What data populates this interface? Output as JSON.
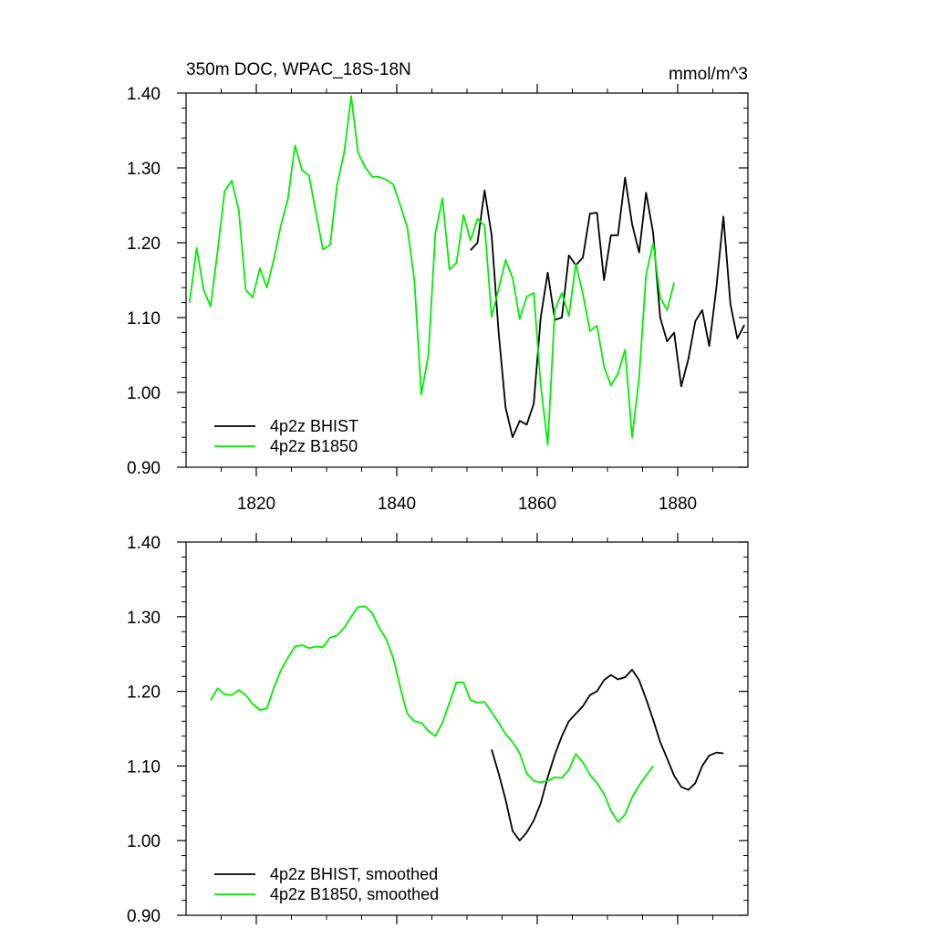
{
  "title": "350m DOC, WPAC_18S-18N",
  "units": "mmol/m^3",
  "colors": {
    "bhist": "#000000",
    "b1850": "#00ee00",
    "frame": "#000000"
  },
  "chart_data": [
    {
      "type": "line",
      "xlim": [
        1810,
        1890
      ],
      "ylim": [
        0.9,
        1.4
      ],
      "xticks": [
        1820,
        1840,
        1860,
        1880
      ],
      "xtick_labels": [
        "1820",
        "1840",
        "1860",
        "1880"
      ],
      "yticks": [
        0.9,
        1.0,
        1.1,
        1.2,
        1.3,
        1.4
      ],
      "ytick_labels": [
        "0.90",
        "1.00",
        "1.10",
        "1.20",
        "1.30",
        "1.40"
      ],
      "legend_position": "bottom-left",
      "series": [
        {
          "name": "4p2z BHIST",
          "color": "#000000",
          "x": [
            1850.5,
            1851.5,
            1852.5,
            1853.5,
            1854.5,
            1855.5,
            1856.5,
            1857.5,
            1858.5,
            1859.5,
            1860.5,
            1861.5,
            1862.5,
            1863.5,
            1864.5,
            1865.5,
            1866.5,
            1867.5,
            1868.5,
            1869.5,
            1870.5,
            1871.5,
            1872.5,
            1873.5,
            1874.5,
            1875.5,
            1876.5,
            1877.5,
            1878.5,
            1879.5,
            1880.5,
            1881.5,
            1882.5,
            1883.5,
            1884.5,
            1885.5,
            1886.5,
            1887.5,
            1888.5,
            1889.5
          ],
          "y": [
            1.19,
            1.2,
            1.27,
            1.21,
            1.08,
            0.98,
            0.94,
            0.962,
            0.957,
            0.985,
            1.1,
            1.16,
            1.097,
            1.1,
            1.183,
            1.17,
            1.18,
            1.239,
            1.24,
            1.15,
            1.21,
            1.21,
            1.287,
            1.225,
            1.187,
            1.267,
            1.213,
            1.1,
            1.068,
            1.08,
            1.008,
            1.044,
            1.095,
            1.11,
            1.062,
            1.14,
            1.235,
            1.118,
            1.072,
            1.09
          ]
        },
        {
          "name": "4p2z B1850",
          "color": "#00ee00",
          "x": [
            1810.5,
            1811.5,
            1812.5,
            1813.5,
            1814.5,
            1815.5,
            1816.5,
            1817.5,
            1818.5,
            1819.5,
            1820.5,
            1821.5,
            1822.5,
            1823.5,
            1824.5,
            1825.5,
            1826.5,
            1827.5,
            1828.5,
            1829.5,
            1830.5,
            1831.5,
            1832.5,
            1833.5,
            1834.5,
            1835.5,
            1836.5,
            1837.5,
            1838.5,
            1839.5,
            1840.5,
            1841.5,
            1842.5,
            1843.5,
            1844.5,
            1845.5,
            1846.5,
            1847.5,
            1848.5,
            1849.5,
            1850.5,
            1851.5,
            1852.5,
            1853.5,
            1854.5,
            1855.5,
            1856.5,
            1857.5,
            1858.5,
            1859.5,
            1860.5,
            1861.5,
            1862.5,
            1863.5,
            1864.5,
            1865.5,
            1866.5,
            1867.5,
            1868.5,
            1869.5,
            1870.5,
            1871.5,
            1872.5,
            1873.5,
            1874.5,
            1875.5,
            1876.5,
            1877.5,
            1878.5,
            1879.5
          ],
          "y": [
            1.12,
            1.193,
            1.137,
            1.115,
            1.19,
            1.269,
            1.283,
            1.243,
            1.137,
            1.127,
            1.166,
            1.14,
            1.178,
            1.223,
            1.258,
            1.33,
            1.297,
            1.29,
            1.239,
            1.191,
            1.197,
            1.277,
            1.32,
            1.396,
            1.32,
            1.301,
            1.288,
            1.288,
            1.284,
            1.278,
            1.25,
            1.221,
            1.15,
            0.997,
            1.05,
            1.213,
            1.259,
            1.164,
            1.173,
            1.237,
            1.203,
            1.232,
            1.223,
            1.101,
            1.138,
            1.177,
            1.153,
            1.098,
            1.128,
            1.133,
            1.01,
            0.93,
            1.11,
            1.133,
            1.102,
            1.172,
            1.132,
            1.082,
            1.089,
            1.035,
            1.009,
            1.025,
            1.057,
            0.94,
            1.02,
            1.157,
            1.2,
            1.127,
            1.11,
            1.147
          ]
        }
      ]
    },
    {
      "type": "line",
      "xlim": [
        1810,
        1890
      ],
      "ylim": [
        0.9,
        1.4
      ],
      "xticks": [
        1820,
        1840,
        1860,
        1880
      ],
      "xtick_labels": [],
      "yticks": [
        0.9,
        1.0,
        1.1,
        1.2,
        1.3,
        1.4
      ],
      "ytick_labels": [
        "0.90",
        "1.00",
        "1.10",
        "1.20",
        "1.30",
        "1.40"
      ],
      "legend_position": "bottom-left",
      "series": [
        {
          "name": "4p2z BHIST, smoothed",
          "color": "#000000",
          "x": [
            1853.5,
            1854.5,
            1855.5,
            1856.5,
            1857.5,
            1858.5,
            1859.5,
            1860.5,
            1861.5,
            1862.5,
            1863.5,
            1864.5,
            1865.5,
            1866.5,
            1867.5,
            1868.5,
            1869.5,
            1870.5,
            1871.5,
            1872.5,
            1873.5,
            1874.5,
            1875.5,
            1876.5,
            1877.5,
            1878.5,
            1879.5,
            1880.5,
            1881.5,
            1882.5,
            1883.5,
            1884.5,
            1885.5,
            1886.5
          ],
          "y": [
            1.122,
            1.09,
            1.055,
            1.013,
            1.0,
            1.011,
            1.027,
            1.05,
            1.085,
            1.115,
            1.14,
            1.16,
            1.17,
            1.18,
            1.195,
            1.2,
            1.215,
            1.222,
            1.216,
            1.219,
            1.229,
            1.215,
            1.19,
            1.162,
            1.132,
            1.11,
            1.087,
            1.072,
            1.068,
            1.077,
            1.1,
            1.114,
            1.118,
            1.117
          ]
        },
        {
          "name": "4p2z B1850, smoothed",
          "color": "#00ee00",
          "x": [
            1813.5,
            1814.5,
            1815.5,
            1816.5,
            1817.5,
            1818.5,
            1819.5,
            1820.5,
            1821.5,
            1822.5,
            1823.5,
            1824.5,
            1825.5,
            1826.5,
            1827.5,
            1828.5,
            1829.5,
            1830.5,
            1831.5,
            1832.5,
            1833.5,
            1834.5,
            1835.5,
            1836.5,
            1837.5,
            1838.5,
            1839.5,
            1840.5,
            1841.5,
            1842.5,
            1843.5,
            1844.5,
            1845.5,
            1846.5,
            1847.5,
            1848.5,
            1849.5,
            1850.5,
            1851.5,
            1852.5,
            1853.5,
            1854.5,
            1855.5,
            1856.5,
            1857.5,
            1858.5,
            1859.5,
            1860.5,
            1861.5,
            1862.5,
            1863.5,
            1864.5,
            1865.5,
            1866.5,
            1867.5,
            1868.5,
            1869.5,
            1870.5,
            1871.5,
            1872.5,
            1873.5,
            1874.5,
            1875.5,
            1876.5
          ],
          "y": [
            1.188,
            1.204,
            1.196,
            1.195,
            1.202,
            1.195,
            1.183,
            1.175,
            1.177,
            1.205,
            1.228,
            1.245,
            1.26,
            1.262,
            1.258,
            1.26,
            1.259,
            1.272,
            1.275,
            1.285,
            1.3,
            1.313,
            1.314,
            1.305,
            1.285,
            1.27,
            1.245,
            1.205,
            1.17,
            1.16,
            1.158,
            1.147,
            1.14,
            1.158,
            1.185,
            1.212,
            1.212,
            1.188,
            1.185,
            1.186,
            1.172,
            1.158,
            1.143,
            1.132,
            1.117,
            1.09,
            1.08,
            1.078,
            1.08,
            1.085,
            1.084,
            1.095,
            1.116,
            1.105,
            1.088,
            1.077,
            1.063,
            1.04,
            1.025,
            1.035,
            1.058,
            1.074,
            1.087,
            1.1
          ]
        }
      ]
    }
  ]
}
